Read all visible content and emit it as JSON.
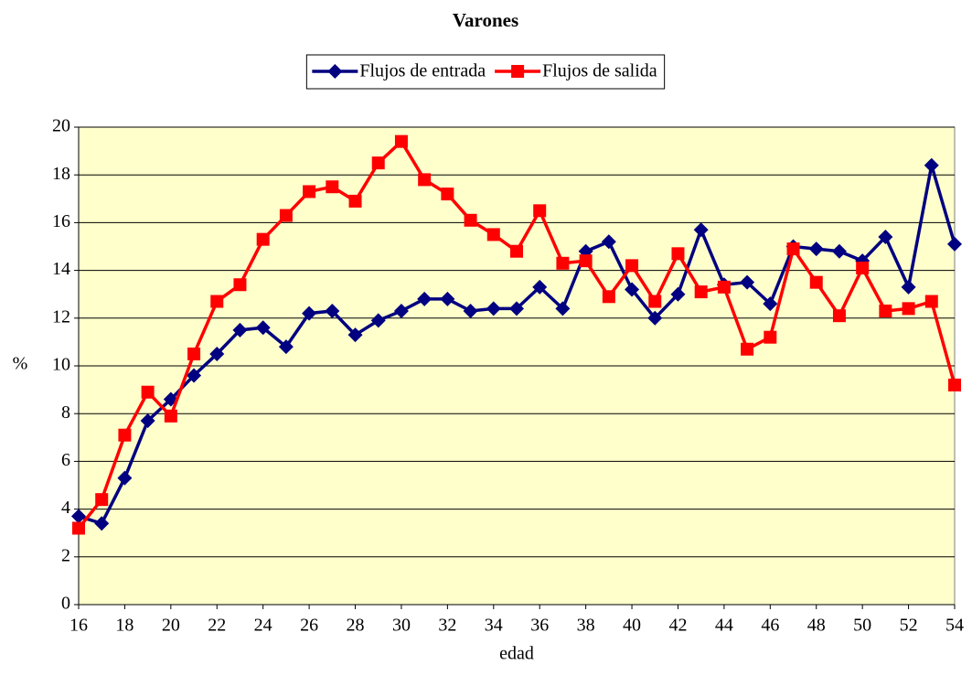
{
  "chart_data": {
    "type": "line",
    "title": "Varones",
    "xlabel": "edad",
    "ylabel": "%",
    "x": [
      16,
      17,
      18,
      19,
      20,
      21,
      22,
      23,
      24,
      25,
      26,
      27,
      28,
      29,
      30,
      31,
      32,
      33,
      34,
      35,
      36,
      37,
      38,
      39,
      40,
      41,
      42,
      43,
      44,
      45,
      46,
      47,
      48,
      49,
      50,
      51,
      52,
      53,
      54
    ],
    "series": [
      {
        "name": "Flujos de entrada",
        "color": "#000080",
        "marker": "diamond",
        "values": [
          3.7,
          3.4,
          5.3,
          7.7,
          8.6,
          9.6,
          10.5,
          11.5,
          11.6,
          10.8,
          12.2,
          12.3,
          11.3,
          11.9,
          12.3,
          12.8,
          12.8,
          12.3,
          12.4,
          12.4,
          13.3,
          12.4,
          14.8,
          15.2,
          13.2,
          12.0,
          13.0,
          15.7,
          13.4,
          13.5,
          12.6,
          15.0,
          14.9,
          14.8,
          14.4,
          15.4,
          13.3,
          18.4,
          15.1
        ]
      },
      {
        "name": "Flujos de salida",
        "color": "#ff0000",
        "marker": "square",
        "values": [
          3.2,
          4.4,
          7.1,
          8.9,
          7.9,
          10.5,
          12.7,
          13.4,
          15.3,
          16.3,
          17.3,
          17.5,
          16.9,
          18.5,
          19.4,
          17.8,
          17.2,
          16.1,
          15.5,
          14.8,
          16.5,
          14.3,
          14.4,
          12.9,
          14.2,
          12.7,
          14.7,
          13.1,
          13.3,
          10.7,
          11.2,
          14.9,
          13.5,
          12.1,
          14.1,
          12.3,
          12.4,
          12.7,
          9.2
        ]
      }
    ],
    "xlim": [
      16,
      54
    ],
    "xticks": [
      16,
      18,
      20,
      22,
      24,
      26,
      28,
      30,
      32,
      34,
      36,
      38,
      40,
      42,
      44,
      46,
      48,
      50,
      52,
      54
    ],
    "ylim": [
      0,
      20
    ],
    "yticks": [
      0,
      2,
      4,
      6,
      8,
      10,
      12,
      14,
      16,
      18,
      20
    ],
    "grid": true,
    "legend": "top",
    "plot_background": "#ffffcc"
  }
}
